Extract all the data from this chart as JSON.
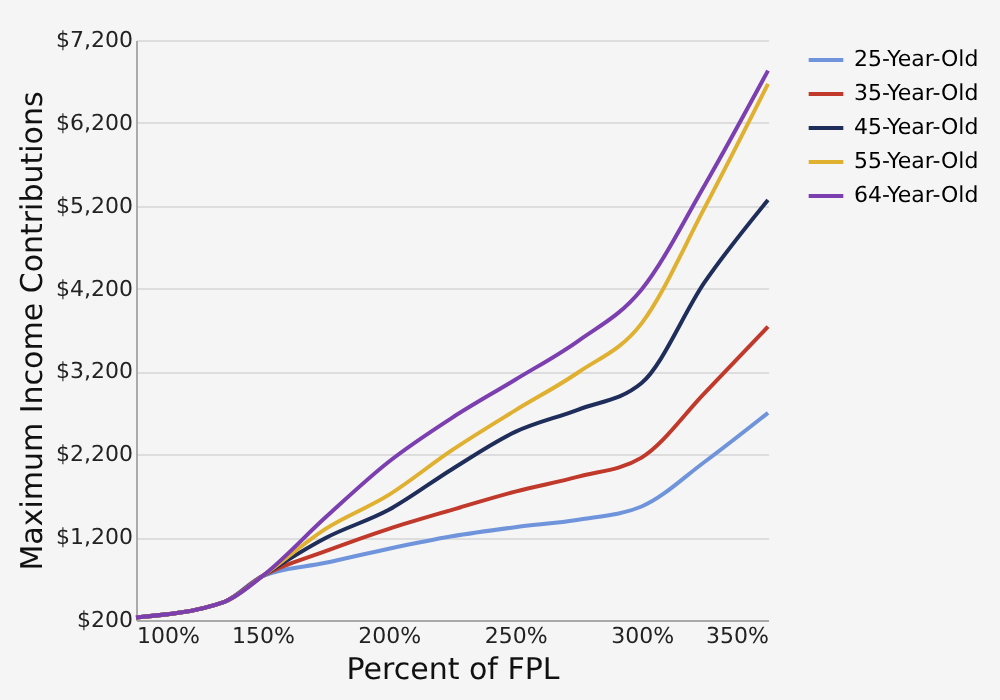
{
  "chart_data": {
    "type": "line",
    "xlabel": "Percent of FPL",
    "ylabel": "Maximum Income Contributions",
    "x": [
      100,
      135,
      150,
      175,
      200,
      225,
      250,
      275,
      300,
      325,
      350
    ],
    "series": [
      {
        "name": "25-Year-Old",
        "color": "#6f94dc",
        "values": [
          230,
          420,
          730,
          890,
          1060,
          1210,
          1320,
          1410,
          1570,
          2110,
          2700
        ]
      },
      {
        "name": "35-Year-Old",
        "color": "#c0392b",
        "values": [
          230,
          420,
          730,
          1030,
          1300,
          1530,
          1750,
          1930,
          2160,
          2940,
          3740
        ]
      },
      {
        "name": "45-Year-Old",
        "color": "#1f2d5a",
        "values": [
          230,
          420,
          730,
          1190,
          1530,
          2020,
          2470,
          2740,
          3060,
          4280,
          5270
        ]
      },
      {
        "name": "55-Year-Old",
        "color": "#e0b030",
        "values": [
          230,
          420,
          730,
          1300,
          1710,
          2250,
          2730,
          3190,
          3780,
          5180,
          6670
        ]
      },
      {
        "name": "64-Year-Old",
        "color": "#7b3fb0",
        "values": [
          230,
          420,
          730,
          1440,
          2110,
          2640,
          3100,
          3570,
          4190,
          5450,
          6830
        ]
      }
    ],
    "xlim": [
      100,
      350
    ],
    "xticks": [
      {
        "value": 100,
        "label": "100%"
      },
      {
        "value": 150,
        "label": "150%"
      },
      {
        "value": 200,
        "label": "200%"
      },
      {
        "value": 250,
        "label": "250%"
      },
      {
        "value": 300,
        "label": "300%"
      },
      {
        "value": 350,
        "label": "350%"
      }
    ],
    "ylim": [
      200,
      7200
    ],
    "yticks": [
      {
        "value": 200,
        "label": "$200"
      },
      {
        "value": 1200,
        "label": "$1,200"
      },
      {
        "value": 2200,
        "label": "$2,200"
      },
      {
        "value": 3200,
        "label": "$3,200"
      },
      {
        "value": 4200,
        "label": "$4,200"
      },
      {
        "value": 5200,
        "label": "$5,200"
      },
      {
        "value": 6200,
        "label": "$6,200"
      },
      {
        "value": 7200,
        "label": "$7,200"
      }
    ],
    "grid": "y",
    "legend": "right",
    "marker": "none",
    "line_style": "solid"
  }
}
